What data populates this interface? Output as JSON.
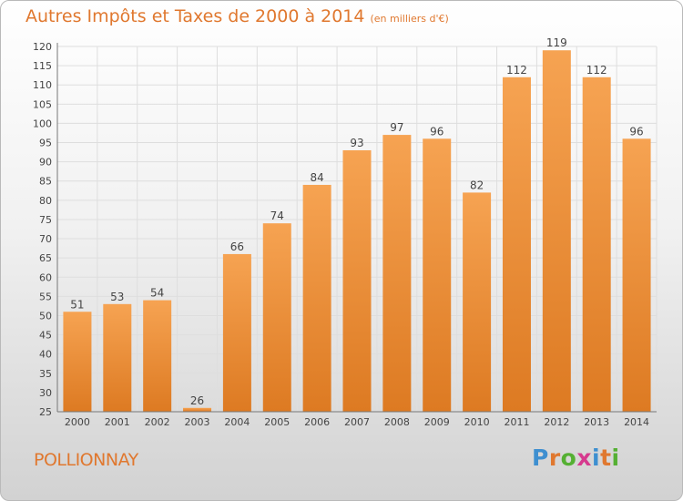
{
  "title": "Autres Impôts et Taxes de 2000 à 2014",
  "unit_note": "(en milliers d'€)",
  "commune": "POLLIONNAY",
  "logo": {
    "text": "Proxiti",
    "letter_colors": [
      "#3e8fd0",
      "#e0782f",
      "#55b033",
      "#d63a8e",
      "#3e8fd0",
      "#e0782f",
      "#55b033"
    ]
  },
  "colors": {
    "bar_light": "#f6a352",
    "bar_dark": "#dd7a22",
    "text": "#e0782f"
  },
  "chart_data": {
    "type": "bar",
    "title": "Autres Impôts et Taxes de 2000 à 2014",
    "categories": [
      "2000",
      "2001",
      "2002",
      "2003",
      "2004",
      "2005",
      "2006",
      "2007",
      "2008",
      "2009",
      "2010",
      "2011",
      "2012",
      "2013",
      "2014"
    ],
    "values": [
      51,
      53,
      54,
      26,
      66,
      74,
      84,
      93,
      97,
      96,
      82,
      112,
      119,
      112,
      96
    ],
    "ylim": [
      25,
      120
    ],
    "yticks": [
      25,
      30,
      35,
      40,
      45,
      50,
      55,
      60,
      65,
      70,
      75,
      80,
      85,
      90,
      95,
      100,
      105,
      110,
      115,
      120
    ],
    "grid": true,
    "legend": "none"
  }
}
